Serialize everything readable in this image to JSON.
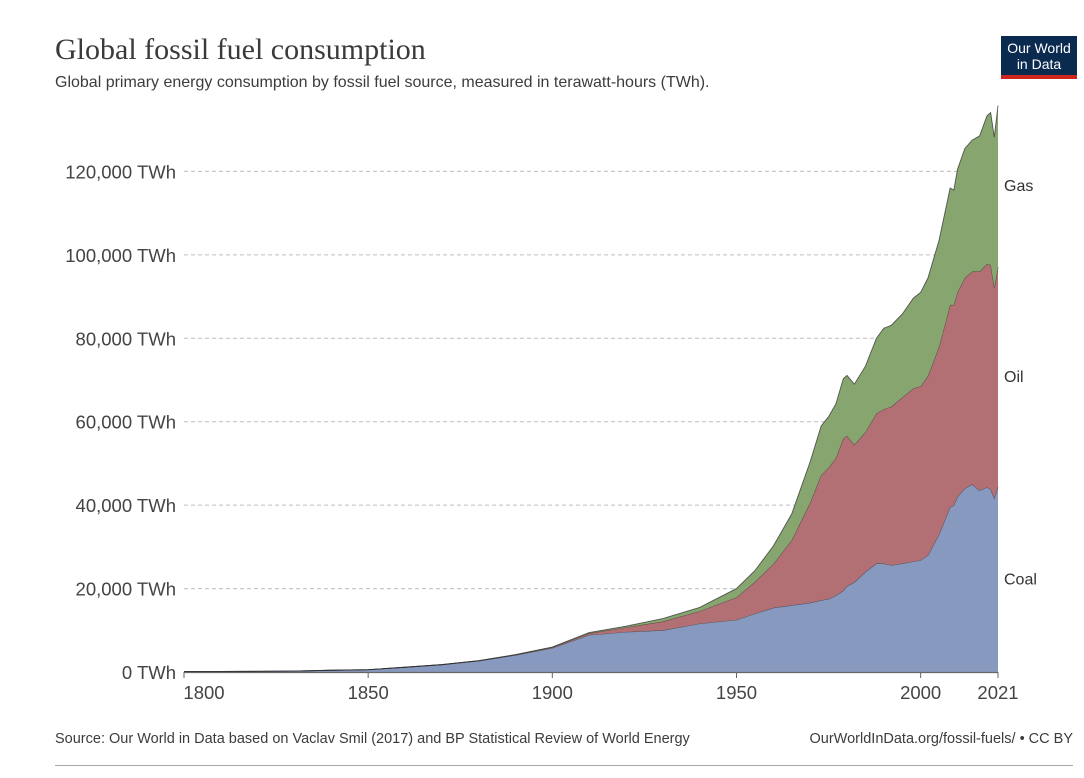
{
  "header": {
    "title": "Global fossil fuel consumption",
    "subtitle": "Global primary energy consumption by fossil fuel source, measured in terawatt-hours (TWh)."
  },
  "logo": {
    "line1": "Our World",
    "line2": "in Data",
    "bg_color": "#0b2a4f",
    "accent_color": "#ce261e"
  },
  "footer": {
    "source": "Source: Our World in Data based on Vaclav Smil (2017) and BP Statistical Review of World Energy",
    "link": "OurWorldInData.org/fossil-fuels/ • CC BY"
  },
  "chart_data": {
    "type": "area",
    "stacked": true,
    "title": "Global fossil fuel consumption",
    "xlabel": "",
    "ylabel": "",
    "xlim": [
      1800,
      2021
    ],
    "ylim": [
      0,
      134000
    ],
    "x_ticks": [
      "1800",
      "1850",
      "1900",
      "1950",
      "2000",
      "2021"
    ],
    "y_ticks": [
      "0 TWh",
      "20,000 TWh",
      "40,000 TWh",
      "60,000 TWh",
      "80,000 TWh",
      "100,000 TWh",
      "120,000 TWh"
    ],
    "grid": "horizontal dashed",
    "legend": "inline labels at right end",
    "x": [
      1800,
      1810,
      1820,
      1830,
      1840,
      1850,
      1860,
      1870,
      1880,
      1890,
      1900,
      1910,
      1920,
      1930,
      1940,
      1950,
      1955,
      1960,
      1965,
      1970,
      1973,
      1975,
      1977,
      1979,
      1980,
      1982,
      1985,
      1988,
      1990,
      1992,
      1995,
      1998,
      2000,
      2002,
      2005,
      2008,
      2009,
      2010,
      2012,
      2014,
      2016,
      2018,
      2019,
      2020,
      2021
    ],
    "series": [
      {
        "name": "Coal",
        "color": "#8899bf",
        "values": [
          97,
          128,
          153,
          216,
          416,
          550,
          1139,
          1760,
          2669,
          4026,
          5728,
          8880,
          9600,
          10000,
          11600,
          12500,
          14000,
          15400,
          16000,
          16600,
          17200,
          17500,
          18300,
          19500,
          20600,
          21500,
          24000,
          26000,
          26000,
          25600,
          26000,
          26500,
          26800,
          28000,
          33000,
          39500,
          40000,
          42000,
          44000,
          45000,
          43500,
          44300,
          43800,
          41700,
          44400
        ]
      },
      {
        "name": "Oil",
        "color": "#b27075",
        "values": [
          0,
          0,
          0,
          0,
          0,
          0,
          0,
          6,
          30,
          90,
          180,
          400,
          1100,
          2100,
          3000,
          5400,
          7600,
          10500,
          15600,
          24000,
          30000,
          31500,
          33000,
          36500,
          36000,
          33000,
          33500,
          36000,
          37000,
          38000,
          39800,
          41500,
          41700,
          43000,
          45000,
          48500,
          48000,
          49000,
          50500,
          51000,
          52500,
          53500,
          53800,
          50500,
          52700
        ]
      },
      {
        "name": "Gas",
        "color": "#87a66f",
        "values": [
          0,
          0,
          0,
          0,
          0,
          0,
          0,
          0,
          15,
          60,
          64,
          184,
          280,
          700,
          870,
          2100,
          2700,
          4300,
          6300,
          9800,
          11800,
          12200,
          13000,
          14300,
          14500,
          14500,
          15800,
          18000,
          19400,
          19500,
          20000,
          21600,
          22500,
          23500,
          25500,
          28000,
          27500,
          29500,
          31000,
          31500,
          32500,
          35500,
          36500,
          36000,
          38700
        ]
      }
    ]
  }
}
